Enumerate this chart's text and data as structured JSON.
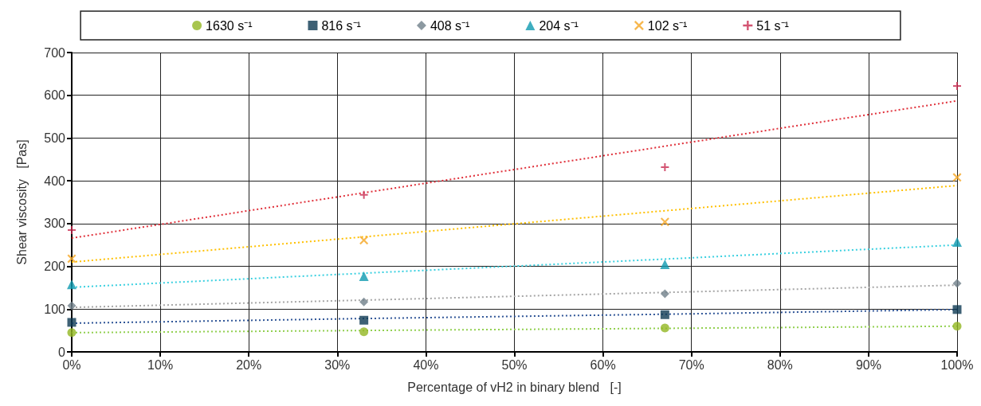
{
  "chart_data": {
    "type": "scatter",
    "xlabel": "Percentage of vH2 in binary blend   [-]",
    "ylabel": "Shear viscosity   [Pas]",
    "x": [
      0,
      33,
      67,
      100
    ],
    "series": [
      {
        "name": "1630 s⁻¹",
        "color": "#92b722",
        "marker": "circle",
        "values": [
          45,
          47,
          56,
          60
        ]
      },
      {
        "name": "816 s⁻¹",
        "color": "#0e3a52",
        "marker": "square",
        "values": [
          69,
          74,
          87,
          99
        ]
      },
      {
        "name": "408 s⁻¹",
        "color": "#6f7f8a",
        "marker": "diamond",
        "values": [
          108,
          117,
          136,
          160
        ]
      },
      {
        "name": "204 s⁻¹",
        "color": "#0f9ab0",
        "marker": "triangle",
        "values": [
          158,
          177,
          205,
          257
        ]
      },
      {
        "name": "102 s⁻¹",
        "color": "#f5a623",
        "marker": "x",
        "values": [
          218,
          261,
          304,
          408
        ]
      },
      {
        "name": "51 s⁻¹",
        "color": "#c8294f",
        "marker": "cross",
        "values": [
          285,
          367,
          432,
          622
        ]
      },
      {
        "type": "line",
        "color": "#92d050",
        "line_style": "dotted",
        "marker": "none",
        "values": [
          45,
          50,
          55,
          60
        ]
      },
      {
        "type": "line",
        "color": "#2f5597",
        "line_style": "dotted",
        "marker": "none",
        "values": [
          67,
          78,
          88,
          99
        ]
      },
      {
        "type": "line",
        "color": "#a6a6a6",
        "line_style": "dotted",
        "marker": "none",
        "values": [
          104,
          121,
          139,
          156
        ]
      },
      {
        "type": "line",
        "color": "#3ad0e0",
        "line_style": "dotted",
        "marker": "none",
        "values": [
          151,
          184,
          217,
          250
        ]
      },
      {
        "type": "line",
        "color": "#ffc000",
        "line_style": "dotted",
        "marker": "none",
        "values": [
          210,
          269,
          330,
          389
        ]
      },
      {
        "type": "line",
        "color": "#e0303a",
        "line_style": "dotted",
        "marker": "none",
        "values": [
          266,
          372,
          481,
          587
        ]
      }
    ],
    "xlim": [
      0,
      100
    ],
    "xticks": [
      {
        "value": 0,
        "label": "0%"
      },
      {
        "value": 10,
        "label": "10%"
      },
      {
        "value": 20,
        "label": "20%"
      },
      {
        "value": 30,
        "label": "30%"
      },
      {
        "value": 40,
        "label": "40%"
      },
      {
        "value": 50,
        "label": "50%"
      },
      {
        "value": 60,
        "label": "60%"
      },
      {
        "value": 70,
        "label": "70%"
      },
      {
        "value": 80,
        "label": "80%"
      },
      {
        "value": 90,
        "label": "90%"
      },
      {
        "value": 100,
        "label": "100%"
      }
    ],
    "ylim": [
      0,
      700
    ],
    "yticks": [
      0,
      100,
      200,
      300,
      400,
      500,
      600,
      700
    ],
    "grid": true,
    "legend": "top"
  }
}
